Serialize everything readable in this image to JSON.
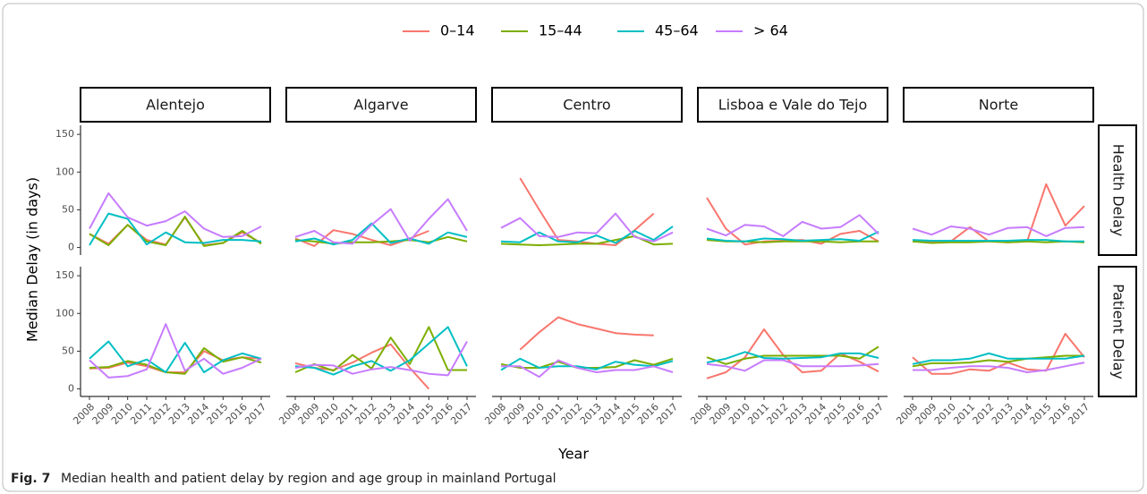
{
  "chart_data": {
    "type": "line",
    "caption_label": "Fig. 7",
    "caption": "Median health and patient delay by region and age group in mainland Portugal",
    "x_label": "Year",
    "y_label": "Median Delay (in days)",
    "categories": [
      "2008",
      "2009",
      "2010",
      "2011",
      "2012",
      "2013",
      "2014",
      "2015",
      "2016",
      "2017"
    ],
    "ylim": [
      -10,
      162
    ],
    "yticks": [
      0,
      50,
      100,
      150
    ],
    "columns": [
      "Alentejo",
      "Algarve",
      "Centro",
      "Lisboa e Vale do Tejo",
      "Norte"
    ],
    "rows": [
      "Health Delay",
      "Patient Delay"
    ],
    "series": [
      {
        "name": "0–14",
        "color": "#F8766D"
      },
      {
        "name": "15–44",
        "color": "#7CAE00"
      },
      {
        "name": "45–64",
        "color": "#00BFC4"
      },
      {
        "name": "> 64",
        "color": "#C77CFF"
      }
    ],
    "values": [
      [
        [
          [
            18,
            5,
            30,
            10,
            4,
            40,
            3,
            6,
            20,
            6
          ],
          [
            18,
            3,
            30,
            8,
            3,
            41,
            2,
            6,
            22,
            5
          ],
          [
            3,
            45,
            38,
            4,
            20,
            7,
            6,
            10,
            10,
            8
          ],
          [
            25,
            72,
            40,
            29,
            35,
            48,
            25,
            14,
            15,
            28
          ]
        ],
        [
          [
            12,
            2,
            23,
            18,
            10,
            3,
            12,
            22,
            null,
            null
          ],
          [
            10,
            8,
            5,
            7,
            7,
            8,
            10,
            7,
            14,
            8
          ],
          [
            8,
            12,
            4,
            10,
            32,
            6,
            12,
            5,
            20,
            14
          ],
          [
            14,
            22,
            7,
            5,
            30,
            51,
            9,
            38,
            64,
            22
          ]
        ],
        [
          [
            null,
            92,
            50,
            10,
            8,
            5,
            3,
            23,
            45,
            null
          ],
          [
            5,
            4,
            3,
            4,
            5,
            5,
            10,
            15,
            4,
            5
          ],
          [
            8,
            7,
            20,
            8,
            7,
            16,
            6,
            22,
            10,
            28
          ],
          [
            26,
            39,
            15,
            14,
            20,
            19,
            45,
            14,
            8,
            20
          ]
        ],
        [
          [
            66,
            25,
            4,
            8,
            9,
            10,
            5,
            18,
            22,
            8
          ],
          [
            10,
            8,
            8,
            7,
            8,
            8,
            8,
            7,
            8,
            8
          ],
          [
            12,
            9,
            8,
            12,
            11,
            9,
            10,
            11,
            9,
            21
          ],
          [
            25,
            16,
            30,
            28,
            15,
            34,
            25,
            27,
            43,
            18
          ]
        ],
        [
          [
            8,
            8,
            8,
            27,
            8,
            7,
            8,
            84,
            29,
            55
          ],
          [
            8,
            6,
            7,
            7,
            8,
            7,
            8,
            7,
            8,
            7
          ],
          [
            10,
            9,
            9,
            9,
            9,
            9,
            10,
            10,
            8,
            8
          ],
          [
            25,
            17,
            28,
            25,
            17,
            26,
            27,
            15,
            26,
            27
          ]
        ]
      ],
      [
        [
          [
            27,
            28,
            35,
            30,
            22,
            22,
            50,
            38,
            42,
            40
          ],
          [
            28,
            29,
            37,
            32,
            22,
            20,
            54,
            36,
            42,
            35
          ],
          [
            40,
            63,
            30,
            39,
            22,
            61,
            22,
            38,
            47,
            40
          ],
          [
            38,
            15,
            17,
            26,
            86,
            24,
            40,
            20,
            28,
            40
          ]
        ],
        [
          [
            34,
            28,
            25,
            35,
            48,
            59,
            28,
            0,
            null,
            null
          ],
          [
            22,
            33,
            24,
            45,
            27,
            68,
            33,
            82,
            25,
            25
          ],
          [
            30,
            28,
            19,
            30,
            37,
            24,
            38,
            60,
            82,
            30
          ],
          [
            28,
            32,
            31,
            20,
            26,
            29,
            25,
            20,
            18,
            63
          ]
        ],
        [
          [
            null,
            52,
            75,
            95,
            86,
            80,
            74,
            72,
            71,
            null
          ],
          [
            33,
            28,
            28,
            36,
            28,
            28,
            29,
            38,
            32,
            40
          ],
          [
            25,
            40,
            28,
            30,
            30,
            26,
            36,
            32,
            30,
            37
          ],
          [
            30,
            30,
            16,
            38,
            28,
            22,
            25,
            25,
            30,
            22
          ]
        ],
        [
          [
            14,
            22,
            42,
            79,
            45,
            22,
            24,
            47,
            36,
            23
          ],
          [
            42,
            33,
            40,
            44,
            44,
            44,
            44,
            44,
            40,
            56
          ],
          [
            35,
            40,
            49,
            41,
            40,
            41,
            42,
            47,
            47,
            41
          ],
          [
            33,
            30,
            24,
            38,
            38,
            30,
            30,
            30,
            31,
            33
          ]
        ],
        [
          [
            42,
            20,
            20,
            26,
            24,
            35,
            26,
            24,
            73,
            42
          ],
          [
            30,
            34,
            34,
            35,
            38,
            36,
            40,
            42,
            44,
            44
          ],
          [
            33,
            38,
            38,
            40,
            47,
            40,
            40,
            40,
            40,
            44
          ],
          [
            25,
            25,
            28,
            30,
            30,
            28,
            22,
            25,
            30,
            35
          ]
        ]
      ]
    ]
  }
}
